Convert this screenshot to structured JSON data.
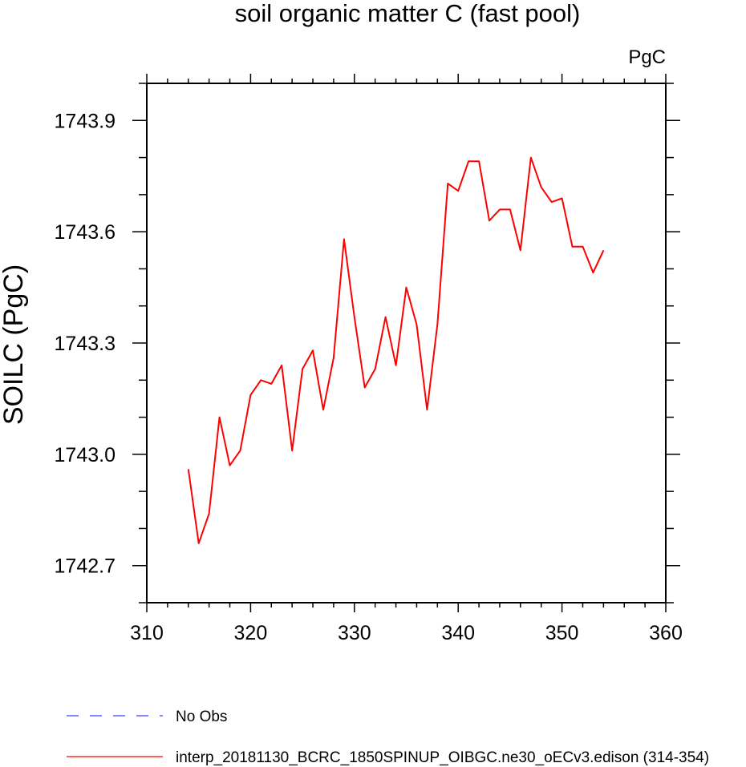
{
  "chart_data": {
    "type": "line",
    "title": "soil organic matter C (fast pool)",
    "units": "PgC",
    "ylabel": "SOILC  (PgC)",
    "xlabel": "",
    "xlim": [
      310,
      360
    ],
    "ylim": [
      1742.6,
      1744.0
    ],
    "x_ticks": [
      310,
      320,
      330,
      340,
      350,
      360
    ],
    "x_tick_labels": [
      "310",
      "320",
      "330",
      "340",
      "350",
      "360"
    ],
    "y_ticks": [
      1742.7,
      1743.0,
      1743.3,
      1743.6,
      1743.9
    ],
    "y_tick_labels": [
      "1742.7",
      "1743.0",
      "1743.3",
      "1743.6",
      "1743.9"
    ],
    "grid": false,
    "series": [
      {
        "name": "interp_20181130_BCRC_1850SPINUP_OIBGC.ne30_oECv3.edison (314-354)",
        "color": "#ff0000",
        "style": "solid",
        "x": [
          314,
          315,
          316,
          317,
          318,
          319,
          320,
          321,
          322,
          323,
          324,
          325,
          326,
          327,
          328,
          329,
          330,
          331,
          332,
          333,
          334,
          335,
          336,
          337,
          338,
          339,
          340,
          341,
          342,
          343,
          344,
          345,
          346,
          347,
          348,
          349,
          350,
          351,
          352,
          353,
          354
        ],
        "y": [
          1742.96,
          1742.76,
          1742.84,
          1743.1,
          1742.97,
          1743.01,
          1743.16,
          1743.2,
          1743.19,
          1743.24,
          1743.01,
          1743.23,
          1743.28,
          1743.12,
          1743.26,
          1743.58,
          1743.37,
          1743.18,
          1743.23,
          1743.37,
          1743.24,
          1743.45,
          1743.35,
          1743.12,
          1743.35,
          1743.73,
          1743.71,
          1743.79,
          1743.79,
          1743.63,
          1743.66,
          1743.66,
          1743.55,
          1743.8,
          1743.72,
          1743.68,
          1743.69,
          1743.56,
          1743.56,
          1743.49,
          1743.55
        ]
      }
    ],
    "legend": {
      "placement": "bottom",
      "entries": [
        {
          "label": "No Obs",
          "color": "#3b3bff",
          "style": "dashed"
        },
        {
          "label": "interp_20181130_BCRC_1850SPINUP_OIBGC.ne30_oECv3.edison (314-354)",
          "color": "#ff0000",
          "style": "solid"
        }
      ]
    }
  }
}
